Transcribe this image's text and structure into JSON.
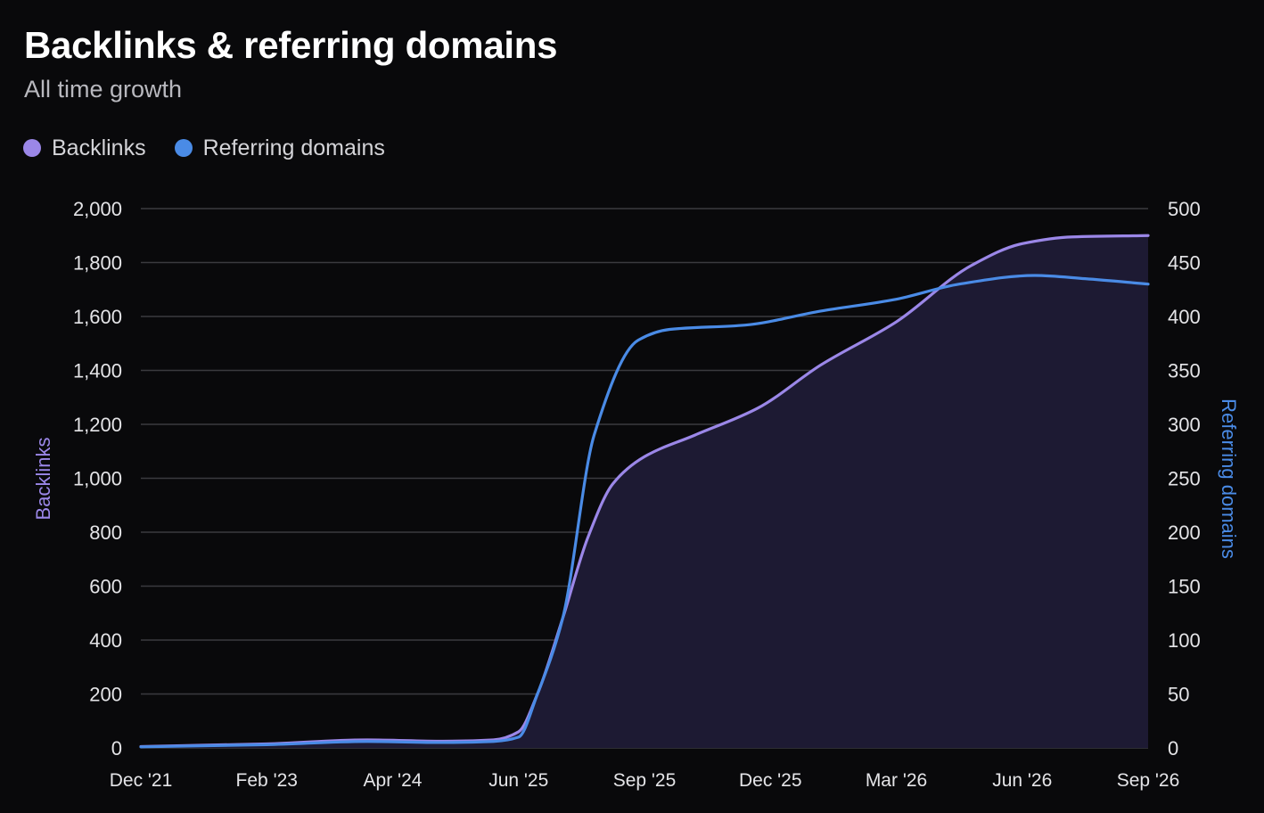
{
  "header": {
    "title": "Backlinks & referring domains",
    "subtitle": "All time growth"
  },
  "colors": {
    "background": "#09090b",
    "backlinks": "#9b87e8",
    "referring_domains": "#4a8be6",
    "area_fill": "#1d1a33",
    "grid": "#3a3a3f",
    "axis_text": "#e4e4e7"
  },
  "legend": {
    "items": [
      {
        "label": "Backlinks",
        "color": "#9b87e8"
      },
      {
        "label": "Referring domains",
        "color": "#4a8be6"
      }
    ]
  },
  "chart_data": {
    "type": "line",
    "x_axis": {
      "tick_labels": [
        "Dec '21",
        "Feb '23",
        "Apr '24",
        "Jun '25",
        "Sep '25",
        "Dec '25",
        "Mar '26",
        "Jun '26",
        "Sep '26"
      ]
    },
    "y_left": {
      "label": "Backlinks",
      "ylim": [
        0,
        2000
      ],
      "ticks": [
        0,
        200,
        400,
        600,
        800,
        1000,
        1200,
        1400,
        1600,
        1800,
        2000
      ],
      "tick_labels": [
        "0",
        "200",
        "400",
        "600",
        "800",
        "1,000",
        "1,200",
        "1,400",
        "1,600",
        "1,800",
        "2,000"
      ]
    },
    "y_right": {
      "label": "Referring domains",
      "ylim": [
        0,
        500
      ],
      "ticks": [
        0,
        50,
        100,
        150,
        200,
        250,
        300,
        350,
        400,
        450,
        500
      ],
      "tick_labels": [
        "0",
        "50",
        "100",
        "150",
        "200",
        "250",
        "300",
        "350",
        "400",
        "450",
        "500"
      ]
    },
    "grid": true,
    "legend_position": "top-left",
    "series": [
      {
        "name": "Backlinks",
        "axis": "left",
        "area": true,
        "points": [
          [
            0,
            5
          ],
          [
            1,
            15
          ],
          [
            1.8,
            30
          ],
          [
            2.4,
            25
          ],
          [
            2.8,
            30
          ],
          [
            3.0,
            60
          ],
          [
            3.15,
            200
          ],
          [
            3.35,
            480
          ],
          [
            3.55,
            780
          ],
          [
            3.75,
            980
          ],
          [
            4.0,
            1080
          ],
          [
            4.4,
            1160
          ],
          [
            4.9,
            1260
          ],
          [
            5.4,
            1420
          ],
          [
            6.0,
            1580
          ],
          [
            6.6,
            1790
          ],
          [
            7.0,
            1870
          ],
          [
            7.4,
            1895
          ],
          [
            8.0,
            1900
          ]
        ]
      },
      {
        "name": "Referring domains",
        "axis": "right",
        "area": false,
        "points": [
          [
            0,
            1
          ],
          [
            1,
            3
          ],
          [
            1.8,
            6
          ],
          [
            2.4,
            5
          ],
          [
            2.8,
            6
          ],
          [
            3.0,
            10
          ],
          [
            3.15,
            50
          ],
          [
            3.35,
            120
          ],
          [
            3.6,
            290
          ],
          [
            3.95,
            378
          ],
          [
            4.2,
            388
          ],
          [
            4.8,
            392
          ],
          [
            5.4,
            405
          ],
          [
            6.0,
            416
          ],
          [
            6.5,
            430
          ],
          [
            7.1,
            438
          ],
          [
            7.5,
            435
          ],
          [
            8.0,
            430
          ]
        ]
      }
    ]
  }
}
